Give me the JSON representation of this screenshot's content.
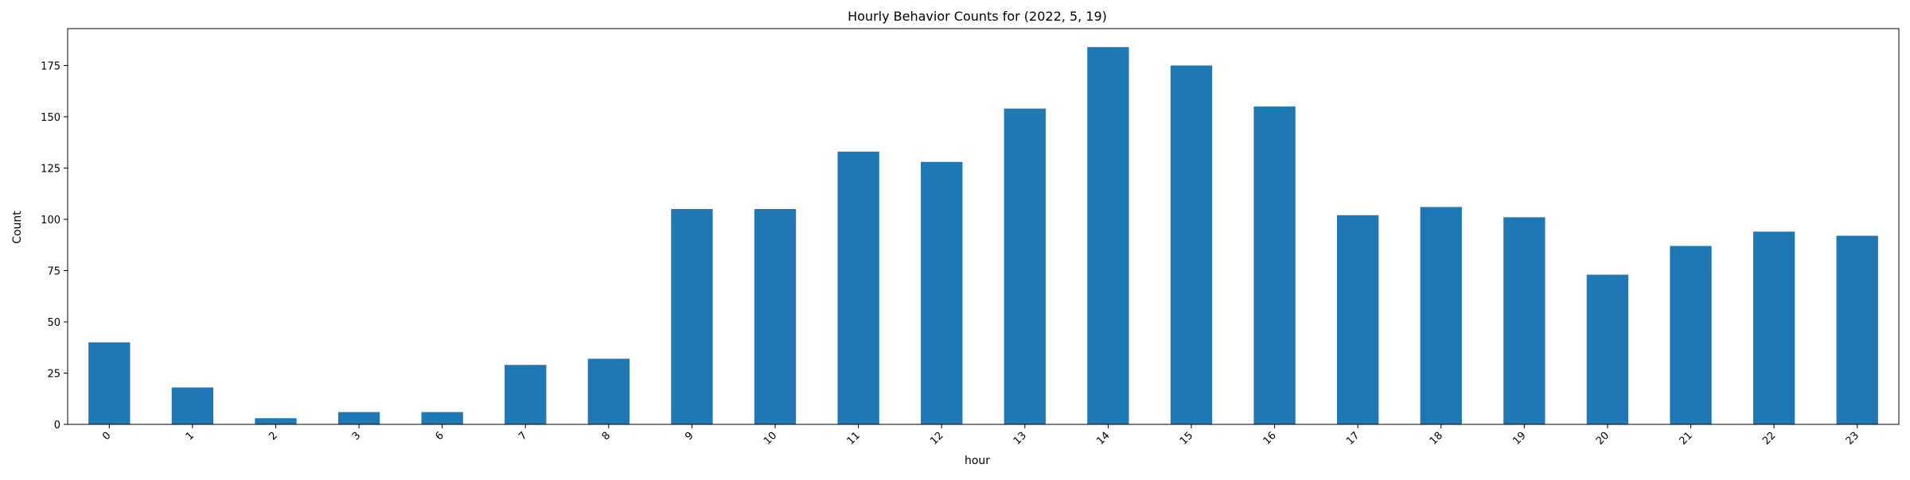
{
  "chart_data": {
    "type": "bar",
    "title": "Hourly Behavior Counts for (2022, 5, 19)",
    "xlabel": "hour",
    "ylabel": "Count",
    "categories": [
      "0",
      "1",
      "2",
      "3",
      "6",
      "7",
      "8",
      "9",
      "10",
      "11",
      "12",
      "13",
      "14",
      "15",
      "16",
      "17",
      "18",
      "19",
      "20",
      "21",
      "22",
      "23"
    ],
    "values": [
      40,
      18,
      3,
      6,
      6,
      29,
      32,
      105,
      105,
      133,
      128,
      154,
      184,
      175,
      155,
      102,
      106,
      101,
      73,
      87,
      94,
      92
    ],
    "ylim": [
      0,
      193
    ],
    "yticks": [
      0,
      25,
      50,
      75,
      100,
      125,
      150,
      175
    ],
    "bar_color": "#1f77b4",
    "grid": false,
    "legend": false
  }
}
